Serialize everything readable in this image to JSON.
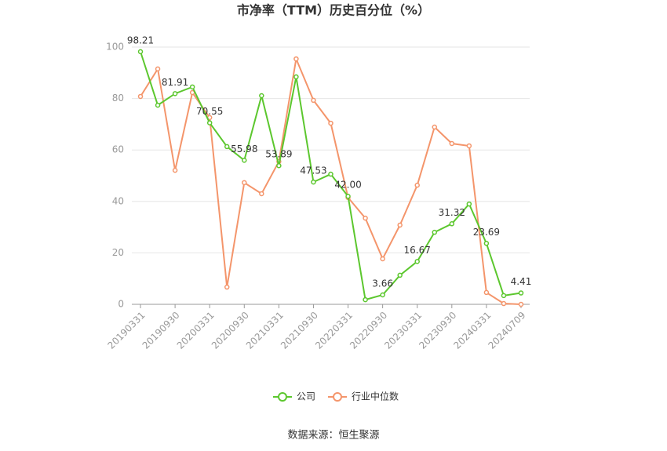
{
  "chart_data": {
    "type": "line",
    "title": "市净率（TTM）历史百分位（%）",
    "source": "数据来源：恒生聚源",
    "categories": [
      "20190331",
      null,
      "20190930",
      null,
      "20200331",
      null,
      "20200930",
      null,
      "20210331",
      null,
      "20210930",
      null,
      "20220331",
      null,
      "20220930",
      null,
      "20230331",
      null,
      "20230930",
      null,
      "20240331",
      null,
      "20240709"
    ],
    "series": [
      {
        "name": "公司",
        "color": "#5cc72e",
        "values": [
          98.21,
          77.4,
          81.91,
          84.5,
          70.55,
          61.3,
          55.98,
          81.1,
          53.89,
          88.4,
          47.53,
          50.6,
          42.0,
          1.8,
          3.66,
          11.3,
          16.67,
          28.0,
          31.32,
          39.0,
          23.69,
          3.4,
          4.41
        ],
        "value_labels": [
          "98.21",
          null,
          "81.91",
          null,
          "70.55",
          null,
          "55.98",
          null,
          "53.89",
          null,
          "47.53",
          null,
          "42.00",
          null,
          "3.66",
          null,
          "16.67",
          null,
          "31.32",
          null,
          "23.69",
          null,
          "4.41"
        ]
      },
      {
        "name": "行业中位数",
        "color": "#f4956b",
        "values": [
          80.8,
          91.5,
          52.1,
          82.3,
          72.6,
          6.7,
          47.3,
          43.0,
          55.5,
          95.4,
          79.3,
          70.4,
          41.5,
          33.5,
          17.7,
          30.8,
          46.3,
          68.9,
          62.5,
          61.6,
          4.6,
          0.3,
          0
        ]
      }
    ],
    "ylim": [
      0,
      100
    ],
    "yticks": [
      0,
      20,
      40,
      60,
      80,
      100
    ],
    "grid": true,
    "legend": "bottom"
  }
}
